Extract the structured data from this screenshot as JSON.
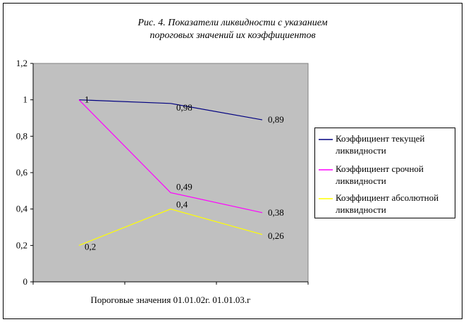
{
  "chart_data": {
    "type": "line",
    "title_lines": [
      "Рис. 4.  Показатели ликвидности с указанием",
      "пороговых значений их коэффициентов"
    ],
    "xlabel": "Пороговые значения  01.01.02г.   01.01.03.г",
    "ylabel": "",
    "ylim": [
      0,
      1.2
    ],
    "y_ticks": [
      "0",
      "0,2",
      "0,4",
      "0,6",
      "0,8",
      "1",
      "1,2"
    ],
    "x_points": 3,
    "grid": false,
    "plot_background": "#c0c0c0",
    "legend_position": "right",
    "series": [
      {
        "name_lines": [
          "Коэффициент текущей",
          "ликвидности"
        ],
        "color": "#000080",
        "values": [
          1,
          0.98,
          0.89
        ],
        "labels": [
          "1",
          "0,98",
          "0,89"
        ]
      },
      {
        "name_lines": [
          "Коэффициент срочной",
          "ликвидности"
        ],
        "color": "#ff00ff",
        "values": [
          1,
          0.49,
          0.38
        ],
        "labels": [
          "",
          "0,49",
          "0,38"
        ]
      },
      {
        "name_lines": [
          "Коэффициент абсолютной",
          "ликвидности"
        ],
        "color": "#ffff00",
        "values": [
          0.2,
          0.4,
          0.26
        ],
        "labels": [
          "0,2",
          "0,4",
          "0,26"
        ]
      }
    ]
  }
}
